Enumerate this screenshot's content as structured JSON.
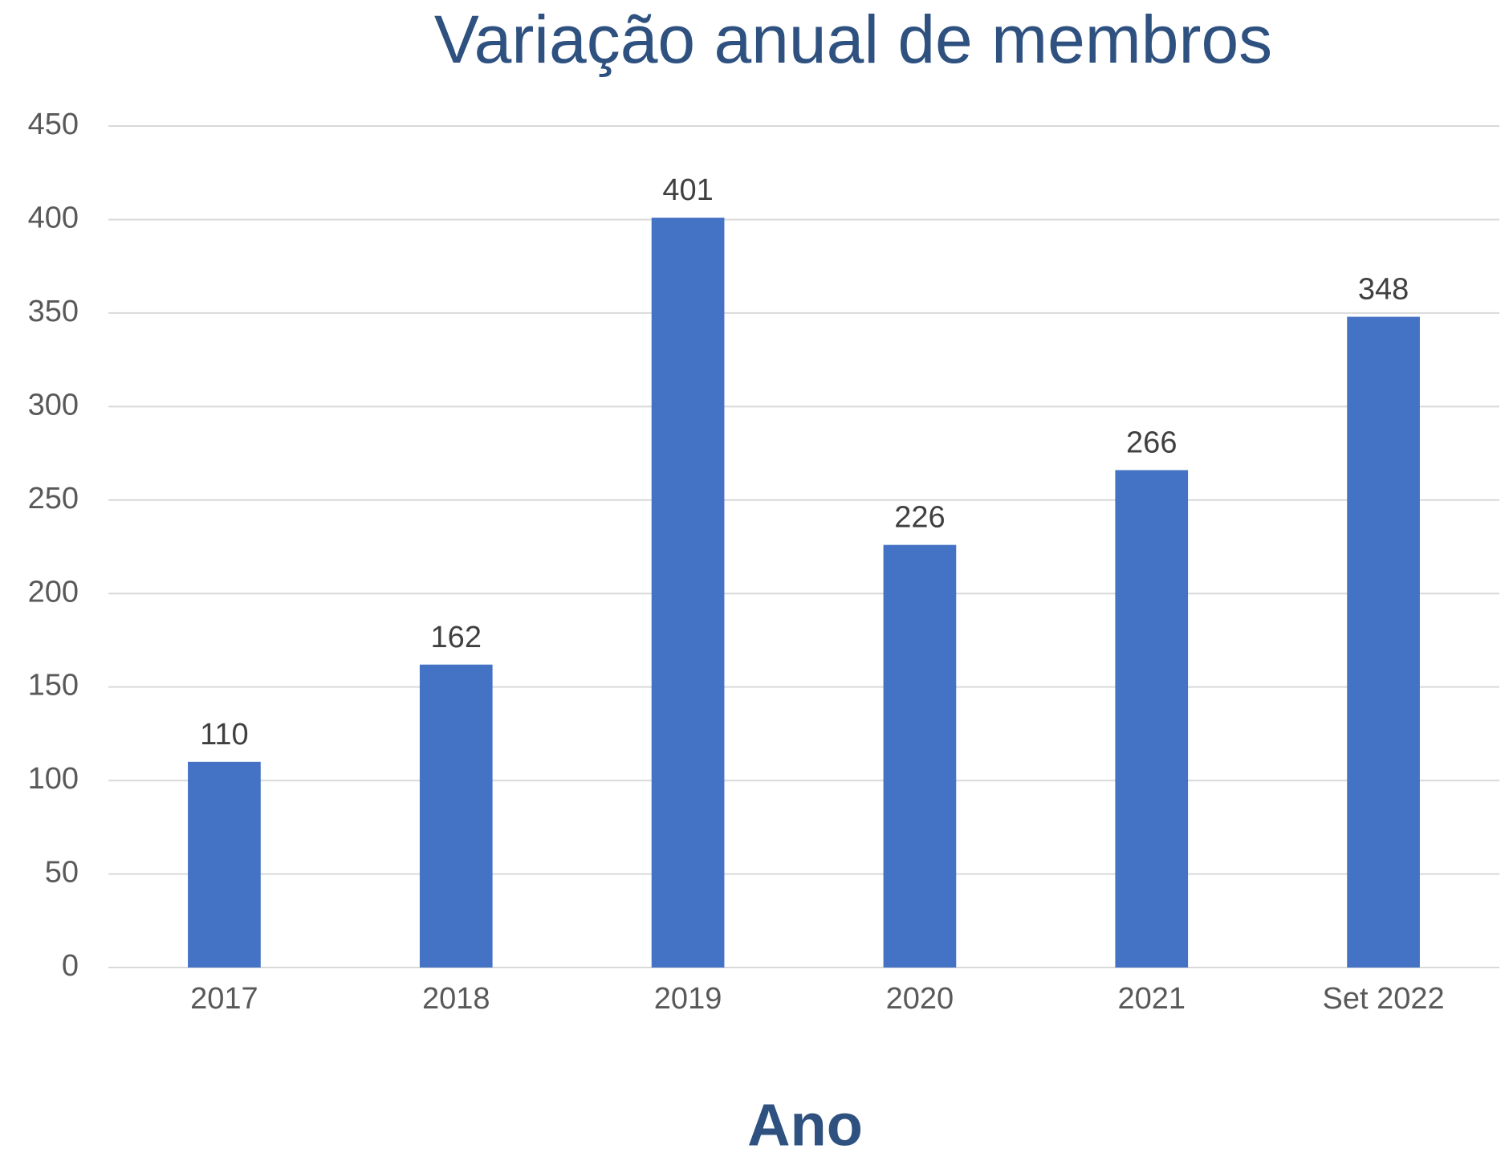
{
  "chart_data": {
    "type": "bar",
    "title": "Variação anual de membros",
    "x_label": "Ano",
    "categories": [
      "2017",
      "2018",
      "2019",
      "2020",
      "2021",
      "Set 2022"
    ],
    "values": [
      110,
      162,
      401,
      226,
      266,
      348
    ],
    "color": "#4472c4",
    "ylim": [
      0,
      450
    ],
    "yticks": [
      0,
      50,
      100,
      150,
      200,
      250,
      300,
      350,
      400,
      450
    ],
    "grid": true
  }
}
